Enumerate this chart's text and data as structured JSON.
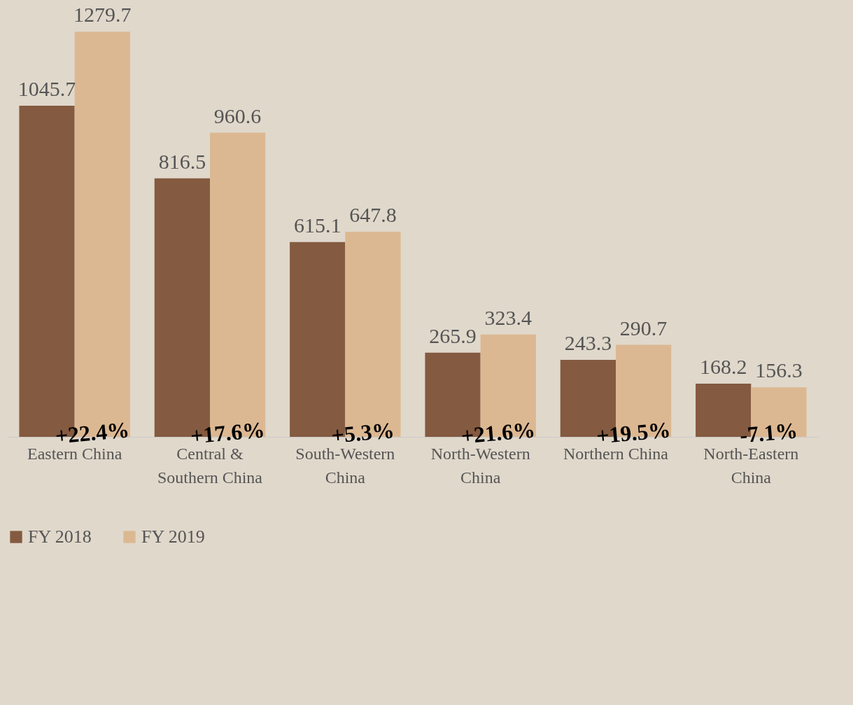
{
  "chart_data": {
    "type": "bar",
    "categories": [
      "Eastern China",
      "Central & Southern China",
      "South-Western China",
      "North-Western China",
      "Northern China",
      "North-Eastern China"
    ],
    "series": [
      {
        "name": "FY 2018",
        "color": "#845a40",
        "values": [
          1045.7,
          816.5,
          615.1,
          265.9,
          243.3,
          168.2
        ]
      },
      {
        "name": "FY 2019",
        "color": "#dcb892",
        "values": [
          1279.7,
          960.6,
          647.8,
          323.4,
          290.7,
          156.3
        ]
      }
    ],
    "data_labels": true,
    "legend": "bottom",
    "annotations": [
      "+22.4%",
      "+17.6%",
      "+5.3%",
      "+21.6%",
      "+19.5%",
      "-7.1%"
    ]
  }
}
